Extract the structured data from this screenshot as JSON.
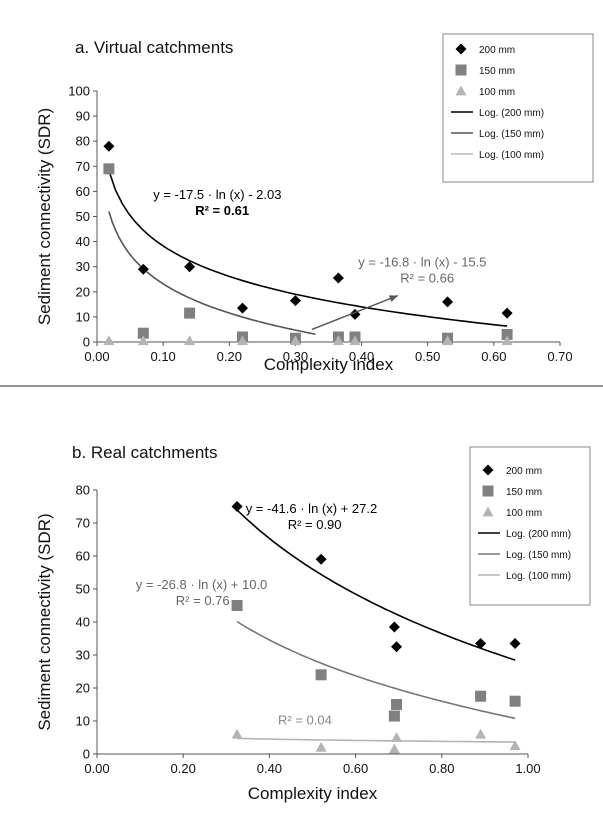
{
  "figure": {
    "separator_color": "#555555"
  },
  "chart_data": [
    {
      "type": "scatter",
      "title": "a. Virtual catchments",
      "xlabel": "Complexity index",
      "ylabel": "Sediment connectivity (SDR)",
      "xlim": [
        0,
        0.7
      ],
      "ylim": [
        0,
        100
      ],
      "xticks": [
        0.0,
        0.1,
        0.2,
        0.3,
        0.4,
        0.5,
        0.6,
        0.7
      ],
      "xtick_labels": [
        "0.00",
        "0.10",
        "0.20",
        "0.30",
        "0.40",
        "0.50",
        "0.60",
        "0.70"
      ],
      "yticks": [
        0,
        10,
        20,
        30,
        40,
        50,
        60,
        70,
        80,
        90,
        100
      ],
      "ytick_labels": [
        "0",
        "10",
        "20",
        "30",
        "40",
        "50",
        "60",
        "70",
        "80",
        "90",
        "100"
      ],
      "grid": false,
      "legend_position": "top-right",
      "series": [
        {
          "name": "200 mm",
          "marker": "diamond",
          "color": "#000000",
          "x": [
            0.018,
            0.07,
            0.14,
            0.22,
            0.3,
            0.365,
            0.39,
            0.53,
            0.62
          ],
          "y": [
            78,
            29,
            30,
            13.5,
            16.5,
            25.5,
            11,
            16,
            11.5
          ]
        },
        {
          "name": "150 mm",
          "marker": "square",
          "color": "#808080",
          "x": [
            0.018,
            0.07,
            0.14,
            0.22,
            0.3,
            0.365,
            0.39,
            0.53,
            0.62
          ],
          "y": [
            69,
            3.5,
            11.5,
            2,
            1.5,
            2,
            2,
            1.5,
            3
          ]
        },
        {
          "name": "100 mm",
          "marker": "triangle",
          "color": "#b4b4b4",
          "x": [
            0.018,
            0.07,
            0.14,
            0.22,
            0.3,
            0.365,
            0.39,
            0.53,
            0.62
          ],
          "y": [
            0.5,
            0.5,
            0.5,
            0.5,
            0.5,
            0.5,
            0.5,
            0.5,
            0.5
          ]
        }
      ],
      "trendlines": [
        {
          "name": "Log. (200 mm)",
          "a": -17.5,
          "b": -2.03,
          "x_range": [
            0.018,
            0.62
          ],
          "color": "#000000"
        },
        {
          "name": "Log. (150 mm)",
          "a": -16.8,
          "b": -15.5,
          "x_range": [
            0.018,
            0.33
          ],
          "color": "#555555"
        },
        {
          "name": "Log. (100 mm)",
          "a": 0,
          "b": 0.5,
          "x_range": [
            0.018,
            0.62
          ],
          "color": "#bbbbbb",
          "hidden": true
        }
      ],
      "annotations": [
        {
          "line1": "y = -17.5 · ln (x) - 2.03",
          "line2": "R² = 0.61",
          "color": "#000000",
          "x": 0.085,
          "y": 57
        },
        {
          "line1": "y = -16.8 · ln (x) - 15.5",
          "line2": "R² = 0.66",
          "color": "#666666",
          "x": 0.395,
          "y": 30
        }
      ]
    },
    {
      "type": "scatter",
      "title": "b. Real catchments",
      "xlabel": "Complexity index",
      "ylabel": "Sediment connectivity (SDR)",
      "xlim": [
        0,
        1.0
      ],
      "ylim": [
        0,
        80
      ],
      "xticks": [
        0.0,
        0.2,
        0.4,
        0.6,
        0.8,
        1.0
      ],
      "xtick_labels": [
        "0.00",
        "0.20",
        "0.40",
        "0.60",
        "0.80",
        "1.00"
      ],
      "yticks": [
        0,
        10,
        20,
        30,
        40,
        50,
        60,
        70,
        80
      ],
      "ytick_labels": [
        "0",
        "10",
        "20",
        "30",
        "40",
        "50",
        "60",
        "70",
        "80"
      ],
      "grid": false,
      "legend_position": "top-right",
      "series": [
        {
          "name": "200 mm",
          "marker": "diamond",
          "color": "#000000",
          "x": [
            0.325,
            0.52,
            0.69,
            0.695,
            0.89,
            0.97
          ],
          "y": [
            75,
            59,
            38.5,
            32.5,
            33.5,
            33.5
          ]
        },
        {
          "name": "150 mm",
          "marker": "square",
          "color": "#808080",
          "x": [
            0.325,
            0.52,
            0.69,
            0.695,
            0.89,
            0.97
          ],
          "y": [
            45,
            24,
            11.5,
            15,
            17.5,
            16
          ]
        },
        {
          "name": "100 mm",
          "marker": "triangle",
          "color": "#b4b4b4",
          "x": [
            0.325,
            0.52,
            0.69,
            0.695,
            0.89,
            0.97
          ],
          "y": [
            6,
            2,
            1.5,
            5,
            6,
            2.5
          ]
        }
      ],
      "trendlines": [
        {
          "name": "Log. (200 mm)",
          "a": -41.6,
          "b": 27.2,
          "x_range": [
            0.325,
            0.97
          ],
          "color": "#000000"
        },
        {
          "name": "Log. (150 mm)",
          "a": -26.8,
          "b": 10.0,
          "x_range": [
            0.325,
            0.97
          ],
          "color": "#777777"
        },
        {
          "name": "Log. (100 mm)",
          "a": -1.0,
          "b": 3.6,
          "x_range": [
            0.325,
            0.97
          ],
          "color": "#b4b4b4"
        }
      ],
      "annotations": [
        {
          "line1": "y = -41.6 · ln (x) + 27.2",
          "line2": "R² = 0.90",
          "color": "#000000",
          "x": 0.345,
          "y": 73
        },
        {
          "line1": "y = -26.8 · ln (x) + 10.0",
          "line2": "R² = 0.76",
          "color": "#666666",
          "x": 0.09,
          "y": 50
        },
        {
          "line1": "R² = 0.04",
          "line2": "",
          "color": "#888888",
          "x": 0.42,
          "y": 9
        }
      ]
    }
  ]
}
